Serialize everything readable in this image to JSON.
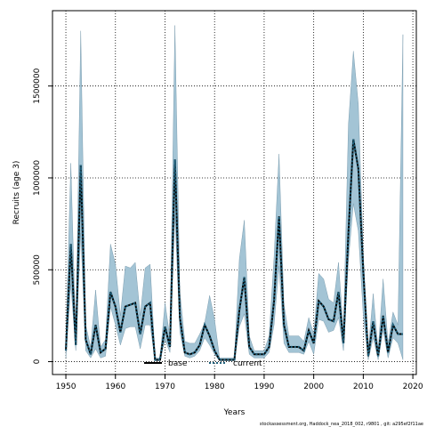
{
  "chart_data": {
    "type": "line",
    "title": "",
    "xlabel": "Years",
    "ylabel": "Recruits (age 3)",
    "xlim": [
      1947.3,
      2020.7
    ],
    "ylim": [
      -70000,
      1910000
    ],
    "xticks": [
      1950,
      1960,
      1970,
      1980,
      1990,
      2000,
      2010,
      2020
    ],
    "yticks": [
      0,
      500000,
      1000000,
      1500000
    ],
    "ytick_labels": [
      "0",
      "500000",
      "1000000",
      "1500000"
    ],
    "grid": true,
    "legend": {
      "placement": "bottom-center",
      "entries": [
        "base",
        "current"
      ]
    },
    "colors": {
      "band": "#a3c4d5",
      "band_edge": "#6b8fa3",
      "base": "#000000",
      "current": "#000000"
    },
    "years": [
      1950,
      1951,
      1952,
      1953,
      1954,
      1955,
      1956,
      1957,
      1958,
      1959,
      1960,
      1961,
      1962,
      1963,
      1964,
      1965,
      1966,
      1967,
      1968,
      1969,
      1970,
      1971,
      1972,
      1973,
      1974,
      1975,
      1976,
      1977,
      1978,
      1979,
      1980,
      1981,
      1982,
      1983,
      1984,
      1985,
      1986,
      1987,
      1988,
      1989,
      1990,
      1991,
      1992,
      1993,
      1994,
      1995,
      1996,
      1997,
      1998,
      1999,
      2000,
      2001,
      2002,
      2003,
      2004,
      2005,
      2006,
      2007,
      2008,
      2009,
      2010,
      2011,
      2012,
      2013,
      2014,
      2015,
      2016,
      2017,
      2018
    ],
    "series": [
      {
        "name": "current",
        "values": [
          60000,
          640000,
          90000,
          1070000,
          120000,
          40000,
          200000,
          50000,
          70000,
          380000,
          300000,
          160000,
          300000,
          310000,
          320000,
          150000,
          300000,
          320000,
          10000,
          10000,
          190000,
          80000,
          1100000,
          240000,
          50000,
          40000,
          50000,
          90000,
          200000,
          140000,
          60000,
          10000,
          10000,
          10000,
          10000,
          280000,
          460000,
          80000,
          40000,
          40000,
          40000,
          80000,
          330000,
          790000,
          200000,
          80000,
          80000,
          80000,
          60000,
          170000,
          100000,
          330000,
          300000,
          230000,
          220000,
          380000,
          100000,
          700000,
          1210000,
          1050000,
          490000,
          30000,
          220000,
          30000,
          250000,
          50000,
          200000,
          150000,
          150000
        ]
      },
      {
        "name": "lower",
        "values": [
          20000,
          420000,
          60000,
          700000,
          60000,
          20000,
          70000,
          20000,
          30000,
          300000,
          200000,
          90000,
          180000,
          190000,
          190000,
          70000,
          200000,
          200000,
          5000,
          5000,
          120000,
          50000,
          800000,
          160000,
          30000,
          20000,
          30000,
          60000,
          130000,
          90000,
          40000,
          5000,
          5000,
          5000,
          5000,
          190000,
          260000,
          40000,
          20000,
          20000,
          20000,
          50000,
          200000,
          520000,
          100000,
          50000,
          50000,
          50000,
          40000,
          110000,
          40000,
          230000,
          220000,
          160000,
          170000,
          240000,
          60000,
          550000,
          860000,
          710000,
          250000,
          10000,
          130000,
          10000,
          170000,
          20000,
          130000,
          100000,
          10000
        ]
      },
      {
        "name": "upper",
        "values": [
          120000,
          1080000,
          130000,
          1800000,
          200000,
          80000,
          390000,
          80000,
          120000,
          640000,
          530000,
          250000,
          520000,
          510000,
          540000,
          250000,
          510000,
          530000,
          20000,
          20000,
          320000,
          130000,
          1830000,
          380000,
          110000,
          100000,
          100000,
          150000,
          210000,
          360000,
          230000,
          20000,
          20000,
          20000,
          20000,
          560000,
          770000,
          140000,
          60000,
          60000,
          60000,
          140000,
          570000,
          1130000,
          310000,
          140000,
          140000,
          140000,
          110000,
          240000,
          150000,
          480000,
          450000,
          340000,
          320000,
          540000,
          160000,
          1290000,
          1690000,
          1400000,
          590000,
          60000,
          370000,
          60000,
          450000,
          100000,
          270000,
          200000,
          1780000
        ]
      },
      {
        "name": "base",
        "values": [
          60000,
          640000,
          90000,
          1070000,
          120000,
          40000,
          200000,
          50000,
          70000,
          380000,
          300000,
          160000,
          300000,
          310000,
          320000,
          150000,
          300000,
          320000,
          10000,
          10000,
          190000,
          80000,
          1100000,
          240000,
          50000,
          40000,
          50000,
          90000,
          200000,
          140000,
          60000,
          10000,
          10000,
          10000,
          10000,
          280000,
          460000,
          80000,
          40000,
          40000,
          40000,
          80000,
          330000,
          790000,
          200000,
          80000,
          80000,
          80000,
          60000,
          170000,
          100000,
          330000,
          300000,
          230000,
          220000,
          380000,
          100000,
          700000,
          1210000,
          1050000,
          490000,
          30000,
          220000,
          30000,
          250000,
          50000,
          200000,
          150000,
          150000
        ]
      }
    ]
  },
  "footer": "stockassessment.org, Haddock_nea_2018_002, r9801 , git: a295ef2f11ae"
}
